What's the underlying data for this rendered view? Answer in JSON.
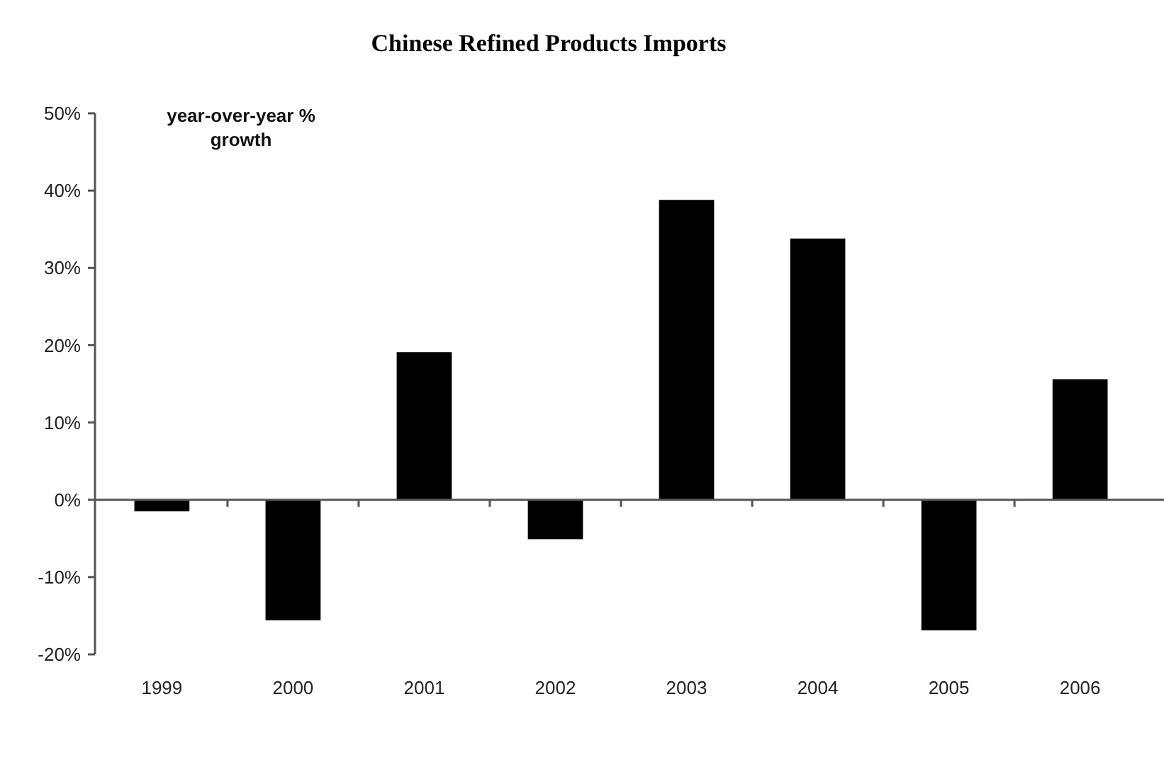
{
  "chart_data": {
    "type": "bar",
    "title": "Chinese Refined Products Imports",
    "annotations": [
      "year-over-year % growth"
    ],
    "categories": [
      "1999",
      "2000",
      "2001",
      "2002",
      "2003",
      "2004",
      "2005",
      "2006"
    ],
    "values": [
      -1.5,
      -15.6,
      19.1,
      -5.1,
      38.8,
      33.8,
      -16.9,
      15.6
    ],
    "color": "#000000",
    "ylim": [
      -20,
      50
    ],
    "yticks": [
      {
        "value": -20,
        "label": "-20%"
      },
      {
        "value": -10,
        "label": "-10%"
      },
      {
        "value": 0,
        "label": "0%"
      },
      {
        "value": 10,
        "label": "10%"
      },
      {
        "value": 20,
        "label": "20%"
      },
      {
        "value": 30,
        "label": "30%"
      },
      {
        "value": 40,
        "label": "40%"
      },
      {
        "value": 50,
        "label": "50%"
      }
    ],
    "orientation": "vertical"
  }
}
